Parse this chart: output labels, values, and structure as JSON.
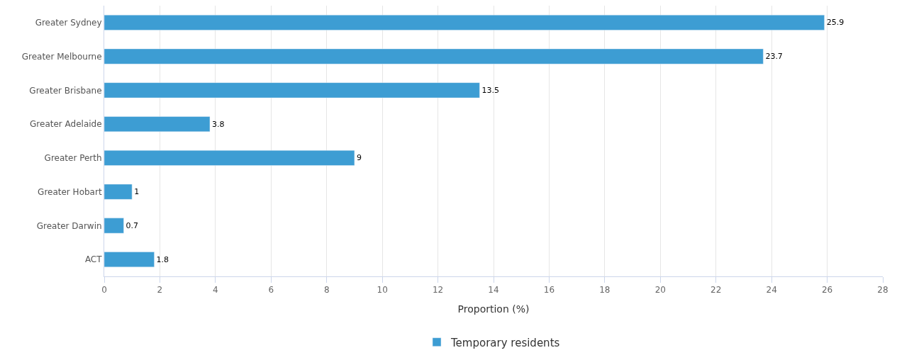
{
  "chart_data": {
    "type": "bar",
    "orientation": "horizontal",
    "xlabel": "Proportion (%)",
    "categories": [
      "Greater Sydney",
      "Greater Melbourne",
      "Greater Brisbane",
      "Greater Adelaide",
      "Greater Perth",
      "Greater Hobart",
      "Greater Darwin",
      "ACT"
    ],
    "series": [
      {
        "name": "Temporary residents",
        "color": "#3d9dd3",
        "values": [
          25.9,
          23.7,
          13.5,
          3.8,
          9,
          1,
          0.7,
          1.8
        ]
      }
    ],
    "xlim": [
      0,
      28
    ],
    "xticks": [
      0,
      2,
      4,
      6,
      8,
      10,
      12,
      14,
      16,
      18,
      20,
      22,
      24,
      26,
      28
    ],
    "grid": "x",
    "legend": "bottom",
    "data_labels": true
  }
}
